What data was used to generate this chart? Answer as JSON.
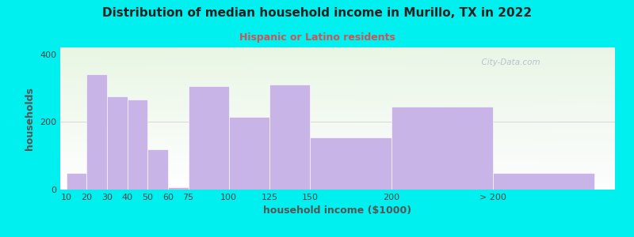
{
  "title": "Distribution of median household income in Murillo, TX in 2022",
  "subtitle": "Hispanic or Latino residents",
  "xlabel": "household income ($1000)",
  "ylabel": "households",
  "bar_color": "#c9b4e8",
  "background_outer": "#00efef",
  "categories": [
    "10",
    "20",
    "30",
    "40",
    "50",
    "60",
    "75",
    "100",
    "125",
    "150",
    "200",
    "> 200"
  ],
  "values": [
    50,
    340,
    275,
    265,
    120,
    8,
    305,
    215,
    310,
    155,
    245,
    50
  ],
  "ylim": [
    0,
    420
  ],
  "yticks": [
    0,
    200,
    400
  ],
  "watermark": "  City-Data.com",
  "title_color": "#222222",
  "subtitle_color": "#cc5555",
  "ylabel_color": "#555555",
  "xlabel_color": "#555555"
}
